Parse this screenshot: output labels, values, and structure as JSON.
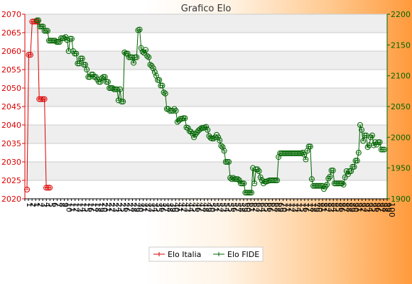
{
  "colors": {
    "italia": "#dd0000",
    "fide": "#006600",
    "band": "#eeeeee",
    "grid": "#cccccc",
    "plot_bg": "#ffffff"
  },
  "chart_data": {
    "type": "line",
    "title": "Grafico Elo",
    "grid": true,
    "legend_position": "bottom",
    "x_tick_labels": [
      "1",
      "2",
      "1",
      "2",
      "3",
      "4",
      "5",
      "6",
      "7",
      "8",
      "9",
      "10",
      "11",
      "12",
      "13",
      "14",
      "15",
      "16",
      "17",
      "18",
      "19",
      "20",
      "21",
      "22",
      "23",
      "24",
      "25",
      "26",
      "27",
      "28",
      "29",
      "30",
      "31",
      "32",
      "33",
      "34",
      "35",
      "36",
      "37",
      "38",
      "39",
      "40",
      "41",
      "42",
      "43",
      "44",
      "45",
      "46",
      "47",
      "48",
      "49",
      "50",
      "51",
      "52",
      "53",
      "54",
      "55",
      "56",
      "57",
      "58",
      "59",
      "60",
      "61",
      "62",
      "63",
      "64",
      "65",
      "66",
      "67",
      "68",
      "69",
      "70",
      "71",
      "72",
      "73",
      "74",
      "75",
      "76",
      "77",
      "78",
      "79",
      "80",
      "81",
      "82",
      "83",
      "84",
      "85",
      "86",
      "87",
      "88",
      "89",
      "90",
      "91",
      "92",
      "93",
      "94",
      "95",
      "96",
      "97",
      "98",
      "99",
      "100"
    ],
    "y_left": {
      "min": 2020,
      "max": 2070,
      "step": 5
    },
    "y_right": {
      "min": 1900,
      "max": 2200,
      "step": 50
    },
    "series": [
      {
        "name": "Elo Italia",
        "axis": "left",
        "color": "#dd0000",
        "values": [
          2022.5,
          2059,
          2059,
          2068,
          2068,
          2068,
          2068,
          2047,
          2047,
          2047,
          2047,
          2023,
          2023,
          2023
        ]
      },
      {
        "name": "Elo FIDE",
        "axis": "right",
        "color": "#006600",
        "values": [
          2190,
          2190,
          2180,
          2180,
          2180,
          2173,
          2173,
          2173,
          2157,
          2157,
          2157,
          2157,
          2157,
          2155,
          2155,
          2155,
          2161,
          2161,
          2161,
          2163,
          2158,
          2140,
          2160,
          2160,
          2140,
          2136,
          2136,
          2120,
          2120,
          2128,
          2128,
          2118,
          2118,
          2110,
          2098,
          2098,
          2102,
          2102,
          2098,
          2098,
          2094,
          2090,
          2090,
          2096,
          2098,
          2098,
          2090,
          2090,
          2080,
          2080,
          2080,
          2078,
          2078,
          2078,
          2060,
          2078,
          2058,
          2058,
          2138,
          2136,
          2136,
          2130,
          2130,
          2130,
          2121,
          2130,
          2130,
          2174,
          2175,
          2145,
          2139,
          2137,
          2142,
          2132,
          2130,
          2118,
          2116,
          2112,
          2106,
          2100,
          2093,
          2093,
          2084,
          2084,
          2073,
          2071,
          2046,
          2046,
          2043,
          2043,
          2043,
          2046,
          2043,
          2025,
          2027,
          2030,
          2030,
          2031,
          2031,
          2016,
          2015,
          2010,
          2009,
          2006,
          2000,
          2005,
          2008,
          2011,
          2013,
          2015,
          2015,
          2016,
          2017,
          2012,
          2002,
          1999,
          1998,
          1998,
          2000,
          2004,
          2000,
          1995,
          1986,
          1984,
          1978,
          1960,
          1960,
          1960,
          1934,
          1932,
          1934,
          1932,
          1932,
          1932,
          1930,
          1925,
          1925,
          1925,
          1910,
          1910,
          1910,
          1910,
          1910,
          1950,
          1925,
          1948,
          1948,
          1945,
          1935,
          1930,
          1925,
          1928,
          1928,
          1929,
          1930,
          1930,
          1930,
          1930,
          1930,
          1930,
          1968,
          1974,
          1974,
          1974,
          1974,
          1974,
          1974,
          1974,
          1974,
          1974,
          1974,
          1974,
          1974,
          1974,
          1974,
          1974,
          1975,
          1972,
          1964,
          1978,
          1985,
          1985,
          1932,
          1921,
          1921,
          1921,
          1921,
          1921,
          1921,
          1921,
          1916,
          1920,
          1923,
          1933,
          1936,
          1946,
          1946,
          1925,
          1925,
          1925,
          1925,
          1925,
          1925,
          1923,
          1935,
          1945,
          1940,
          1945,
          1945,
          1952,
          1952,
          1962,
          1962,
          1975,
          2020,
          2012,
          1994,
          2003,
          2003,
          1984,
          1987,
          2000,
          2003,
          1987,
          1992,
          1988,
          1992,
          1992,
          1980,
          1980,
          1980
        ]
      }
    ]
  }
}
